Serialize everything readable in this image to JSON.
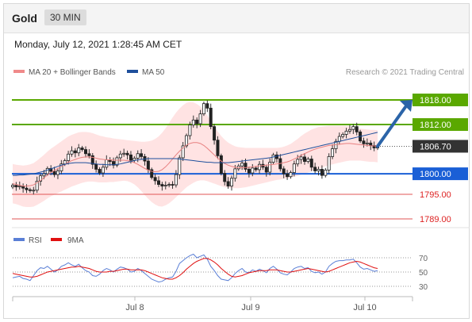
{
  "header": {
    "title": "Gold",
    "timeframe": "30 MIN",
    "timestamp": "Monday, July 12, 2021 1:28:45 AM CET"
  },
  "legend": {
    "bb_label": "MA 20 + Bollinger Bands",
    "ma50_label": "MA 50",
    "credit": "Research © 2021 Trading Central"
  },
  "colors": {
    "resistance": "#5aa800",
    "support": "#1a5fd6",
    "minor": "#e05555",
    "current": "#333333",
    "bb": "#ffd9d9",
    "arrow": "#2b64a8"
  },
  "chart_data": [
    {
      "type": "line",
      "name": "price",
      "ylim": [
        1787,
        1823
      ],
      "x_ticks": [
        "Jul 8",
        "Jul 9",
        "Jul 10"
      ],
      "levels": [
        {
          "label": "1818.00",
          "value": 1818.0,
          "kind": "resistance"
        },
        {
          "label": "1812.00",
          "value": 1812.0,
          "kind": "resistance"
        },
        {
          "label": "1806.70",
          "value": 1806.7,
          "kind": "current"
        },
        {
          "label": "1800.00",
          "value": 1800.0,
          "kind": "support"
        },
        {
          "label": "1795.00",
          "value": 1795.0,
          "kind": "minor"
        },
        {
          "label": "1789.00",
          "value": 1789.0,
          "kind": "minor"
        }
      ],
      "series": [
        {
          "values": [
            1797.2,
            1796.8,
            1797.0,
            1796.5,
            1796.1,
            1795.9,
            1796.0,
            1798.2,
            1799.5,
            1800.0,
            1801.3,
            1800.6,
            1799.8,
            1800.7,
            1802.4,
            1803.2,
            1804.8,
            1805.6,
            1805.1,
            1806.3,
            1805.9,
            1804.9,
            1804.4,
            1802.3,
            1801.1,
            1800.2,
            1801.6,
            1803.4,
            1803.0,
            1802.1,
            1803.9,
            1804.8,
            1805.0,
            1804.6,
            1803.3,
            1803.8,
            1804.9,
            1804.2,
            1803.1,
            1801.0,
            1799.1,
            1798.3,
            1797.4,
            1797.0,
            1797.2,
            1797.4,
            1797.3,
            1799.8,
            1803.9,
            1806.8,
            1809.3,
            1811.9,
            1813.1,
            1812.2,
            1814.6,
            1817.1,
            1816.0,
            1811.5,
            1808.2,
            1804.4,
            1800.1,
            1798.1,
            1797.0,
            1798.9,
            1801.2,
            1801.9,
            1802.6,
            1801.1,
            1800.2,
            1801.4,
            1801.0,
            1802.3,
            1801.6,
            1800.4,
            1802.8,
            1804.6,
            1803.7,
            1801.2,
            1800.0,
            1799.3,
            1800.3,
            1802.4,
            1803.5,
            1804.1,
            1803.0,
            1803.6,
            1801.6,
            1800.7,
            1801.1,
            1799.6,
            1800.9,
            1804.2,
            1806.1,
            1807.9,
            1809.1,
            1809.6,
            1810.4,
            1810.8,
            1811.5,
            1810.2,
            1808.0,
            1807.3,
            1807.5,
            1806.9,
            1806.3,
            1806.7
          ]
        },
        {
          "name": "MA 20",
          "values": [
            1797.6,
            1797.4,
            1797.2,
            1797.0,
            1797.0,
            1797.1,
            1797.3,
            1797.8,
            1798.4,
            1799.0,
            1799.7,
            1800.3,
            1800.8,
            1801.3,
            1801.8,
            1802.3,
            1802.8,
            1803.2,
            1803.5,
            1803.8,
            1804.0,
            1804.1,
            1804.1,
            1804.0,
            1803.8,
            1803.6,
            1803.5,
            1803.4,
            1803.4,
            1803.3,
            1803.3,
            1803.3,
            1803.3,
            1803.2,
            1803.0,
            1802.7,
            1802.3,
            1801.8,
            1801.3,
            1800.9,
            1800.6,
            1800.5,
            1800.6,
            1801.0,
            1801.7,
            1802.6,
            1803.6,
            1804.6,
            1805.5,
            1806.3,
            1807.0,
            1807.4,
            1807.6,
            1807.6,
            1807.4,
            1806.9,
            1806.2,
            1805.4,
            1804.6,
            1803.8,
            1803.1,
            1802.5,
            1802.1,
            1801.8,
            1801.6,
            1801.5,
            1801.5,
            1801.5,
            1801.6,
            1801.7,
            1801.8,
            1801.9,
            1802.0,
            1802.1,
            1802.2,
            1802.3,
            1802.4,
            1802.5,
            1802.7,
            1802.9,
            1803.2,
            1803.6,
            1804.0,
            1804.5,
            1804.9,
            1805.3,
            1805.7,
            1806.0,
            1806.3,
            1806.5,
            1806.7,
            1806.9,
            1807.0,
            1807.1,
            1807.2,
            1807.3,
            1807.4,
            1807.4,
            1807.3,
            1807.2,
            1807.1,
            1807.0,
            1806.9,
            1806.8,
            1806.8,
            1806.7
          ]
        },
        {
          "name": "MA 50",
          "values": [
            1799.6,
            1799.6,
            1799.7,
            1799.7,
            1799.8,
            1799.9,
            1800.0,
            1800.2,
            1800.4,
            1800.6,
            1800.9,
            1801.2,
            1801.5,
            1801.8,
            1802.1,
            1802.3,
            1802.5,
            1802.6,
            1802.7,
            1802.7,
            1802.7,
            1802.7,
            1802.6,
            1802.5,
            1802.4,
            1802.3,
            1802.3,
            1802.2,
            1802.2,
            1802.2,
            1802.3,
            1802.4,
            1802.6,
            1802.8,
            1803.0,
            1803.2,
            1803.4,
            1803.5,
            1803.6,
            1803.7,
            1803.7,
            1803.7,
            1803.7,
            1803.7,
            1803.7,
            1803.7,
            1803.7,
            1803.7,
            1803.6,
            1803.5,
            1803.4,
            1803.3,
            1803.2,
            1803.1,
            1803.0,
            1802.9,
            1802.8,
            1802.8,
            1802.7,
            1802.7,
            1802.7,
            1802.7,
            1802.7,
            1802.8,
            1802.9,
            1803.0,
            1803.1,
            1803.2,
            1803.3,
            1803.4,
            1803.5,
            1803.6,
            1803.7,
            1803.8,
            1803.9,
            1804.1,
            1804.3,
            1804.5,
            1804.7,
            1804.9,
            1805.1,
            1805.3,
            1805.5,
            1805.7,
            1805.9,
            1806.1,
            1806.3,
            1806.5,
            1806.7,
            1806.9,
            1807.1,
            1807.3,
            1807.5,
            1807.7,
            1807.9,
            1808.1,
            1808.3,
            1808.5,
            1808.7,
            1808.9,
            1809.1,
            1809.3,
            1809.5,
            1809.7,
            1809.9,
            1810.1
          ]
        }
      ],
      "bollinger_width": [
        4.8,
        4.8,
        4.9,
        5.0,
        5.1,
        5.2,
        5.3,
        5.4,
        5.5,
        5.6,
        5.7,
        5.8,
        5.9,
        6.0,
        6.1,
        6.2,
        6.3,
        6.3,
        6.3,
        6.3,
        6.2,
        6.1,
        6.0,
        5.9,
        5.8,
        5.7,
        5.6,
        5.5,
        5.4,
        5.3,
        5.2,
        5.1,
        5.0,
        5.0,
        5.1,
        5.3,
        5.6,
        6.0,
        6.5,
        7.0,
        7.5,
        8.0,
        8.5,
        9.0,
        9.4,
        9.8,
        10.1,
        10.3,
        10.4,
        10.4,
        10.3,
        10.1,
        9.8,
        9.4,
        9.0,
        8.5,
        8.0,
        7.5,
        7.0,
        6.5,
        6.1,
        5.8,
        5.5,
        5.3,
        5.1,
        5.0,
        4.9,
        4.8,
        4.7,
        4.6,
        4.5,
        4.4,
        4.3,
        4.2,
        4.1,
        4.0,
        3.9,
        3.9,
        3.9,
        4.0,
        4.1,
        4.3,
        4.5,
        4.7,
        4.9,
        5.0,
        5.1,
        5.1,
        5.1,
        5.0,
        4.9,
        4.8,
        4.7,
        4.6,
        4.5,
        4.4,
        4.3,
        4.2,
        4.1,
        4.0,
        3.9,
        3.9,
        3.9,
        3.9,
        3.9,
        3.9
      ]
    },
    {
      "type": "line",
      "name": "rsi",
      "ylim": [
        20,
        80
      ],
      "y_ticks": [
        "70",
        "50",
        "30"
      ],
      "series": [
        {
          "name": "RSI",
          "values": [
            42,
            43,
            44,
            41,
            40,
            38,
            45,
            52,
            56,
            55,
            58,
            54,
            50,
            53,
            58,
            60,
            63,
            60,
            58,
            61,
            56,
            52,
            50,
            45,
            44,
            47,
            52,
            55,
            53,
            50,
            54,
            57,
            56,
            54,
            50,
            51,
            55,
            52,
            48,
            44,
            40,
            38,
            36,
            37,
            40,
            42,
            43,
            51,
            62,
            66,
            70,
            73,
            75,
            70,
            72,
            74,
            68,
            58,
            52,
            45,
            40,
            39,
            38,
            42,
            48,
            52,
            55,
            50,
            49,
            53,
            51,
            54,
            52,
            49,
            55,
            58,
            54,
            49,
            47,
            46,
            50,
            55,
            57,
            58,
            55,
            56,
            51,
            49,
            50,
            47,
            50,
            58,
            62,
            65,
            66,
            66,
            67,
            67,
            68,
            63,
            57,
            54,
            55,
            53,
            51,
            52
          ]
        },
        {
          "name": "9MA",
          "values": [
            48,
            47,
            46,
            45,
            44,
            43,
            43,
            44,
            46,
            48,
            50,
            51,
            52,
            53,
            54,
            55,
            56,
            57,
            57,
            58,
            57,
            56,
            55,
            53,
            51,
            50,
            50,
            50,
            51,
            51,
            52,
            53,
            54,
            54,
            53,
            53,
            53,
            53,
            52,
            50,
            48,
            46,
            44,
            42,
            41,
            40,
            40,
            42,
            45,
            49,
            54,
            58,
            62,
            65,
            67,
            69,
            69,
            67,
            64,
            60,
            55,
            51,
            47,
            44,
            43,
            44,
            45,
            47,
            49,
            50,
            51,
            52,
            52,
            52,
            53,
            53,
            53,
            52,
            51,
            50,
            50,
            51,
            52,
            53,
            54,
            55,
            54,
            53,
            52,
            51,
            50,
            51,
            53,
            55,
            57,
            59,
            61,
            63,
            64,
            65,
            64,
            62,
            60,
            58,
            56,
            55
          ]
        }
      ]
    }
  ]
}
